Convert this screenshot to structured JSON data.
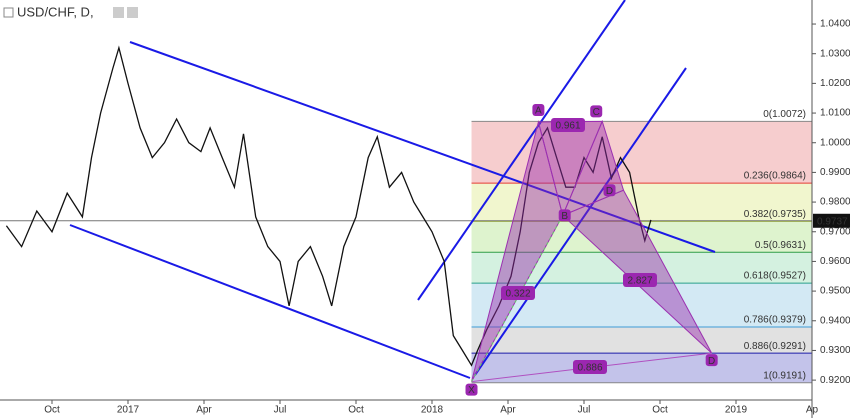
{
  "chart_data": {
    "type": "line",
    "title": "USD/CHF, D,",
    "color": "#111111",
    "x": [
      2016.6,
      2016.65,
      2016.7,
      2016.75,
      2016.8,
      2016.85,
      2016.88,
      2016.91,
      2016.95,
      2016.97,
      2017.0,
      2017.04,
      2017.08,
      2017.12,
      2017.16,
      2017.2,
      2017.24,
      2017.27,
      2017.31,
      2017.35,
      2017.38,
      2017.42,
      2017.46,
      2017.5,
      2017.53,
      2017.56,
      2017.6,
      2017.64,
      2017.67,
      2017.71,
      2017.75,
      2017.79,
      2017.82,
      2017.86,
      2017.9,
      2017.94,
      2017.97,
      2018.0,
      2018.04,
      2018.07,
      2018.1,
      2018.13,
      2018.15,
      2018.18,
      2018.22,
      2018.26,
      2018.29,
      2018.32,
      2018.35,
      2018.38,
      2018.41,
      2018.44,
      2018.47,
      2018.5,
      2018.53,
      2018.56,
      2018.59,
      2018.62,
      2018.65,
      2018.68,
      2018.7,
      2018.72
    ],
    "values": [
      0.972,
      0.965,
      0.977,
      0.97,
      0.983,
      0.975,
      0.995,
      1.01,
      1.025,
      1.032,
      1.02,
      1.005,
      0.995,
      1.0,
      1.008,
      1.0,
      0.997,
      1.005,
      0.995,
      0.985,
      1.003,
      0.975,
      0.965,
      0.96,
      0.945,
      0.96,
      0.965,
      0.955,
      0.945,
      0.965,
      0.975,
      0.995,
      1.002,
      0.985,
      0.99,
      0.98,
      0.975,
      0.97,
      0.96,
      0.935,
      0.93,
      0.925,
      0.93,
      0.937,
      0.945,
      0.955,
      0.97,
      0.99,
      1.0,
      1.005,
      0.995,
      0.985,
      0.985,
      0.995,
      0.99,
      1.002,
      0.988,
      0.995,
      0.99,
      0.975,
      0.967,
      0.974
    ],
    "xlim": [
      2016.579,
      2019.25
    ],
    "ylim": [
      0.9133,
      1.0481
    ],
    "xticks": [
      {
        "value": 2016.75,
        "label": "Oct"
      },
      2017,
      {
        "value": 2017.25,
        "label": "Apr"
      },
      {
        "value": 2017.5,
        "label": "Jul"
      },
      {
        "value": 2017.75,
        "label": "Oct"
      },
      2018,
      {
        "value": 2018.25,
        "label": "Apr"
      },
      {
        "value": 2018.5,
        "label": "Jul"
      },
      {
        "value": 2018.75,
        "label": "Oct"
      },
      2019,
      {
        "value": 2019.25,
        "label": "Ap"
      }
    ],
    "yticks": [
      {
        "value": 0.92,
        "label": "0.9200"
      },
      {
        "value": 0.93,
        "label": "0.9300"
      },
      {
        "value": 0.94,
        "label": "0.9400"
      },
      {
        "value": 0.95,
        "label": "0.9500"
      },
      {
        "value": 0.96,
        "label": "0.9600"
      },
      {
        "value": 0.97,
        "label": "0.9700"
      },
      {
        "value": 0.98,
        "label": "0.9800"
      },
      {
        "value": 0.99,
        "label": "0.9900"
      },
      {
        "value": 1.0,
        "label": "1.0000"
      },
      {
        "value": 1.01,
        "label": "1.0100"
      },
      {
        "value": 1.02,
        "label": "1.0200"
      },
      {
        "value": 1.03,
        "label": "1.0300"
      },
      {
        "value": 1.04,
        "label": "1.0400"
      }
    ],
    "last_price": {
      "value": 0.9737,
      "label": "0.9737"
    },
    "fib_levels": [
      {
        "label": "0(1.0072)",
        "value": 1.0072,
        "color": "#888888",
        "fill": "#f4c4c6"
      },
      {
        "label": "0.236(0.9864)",
        "value": 0.9864,
        "color": "#e53935",
        "fill": "#eef5c6"
      },
      {
        "label": "0.382(0.9735)",
        "value": 0.9735,
        "color": "#a5b83a",
        "fill": "#d8f1c6"
      },
      {
        "label": "0.5(0.9631)",
        "value": 0.9631,
        "color": "#2e9e45",
        "fill": "#cdeedb"
      },
      {
        "label": "0.618(0.9527)",
        "value": 0.9527,
        "color": "#28a08a",
        "fill": "#cbe5f2"
      },
      {
        "label": "0.786(0.9379)",
        "value": 0.9379,
        "color": "#3d9ad6",
        "fill": "#dcdcdc"
      },
      {
        "label": "0.886(0.9291)",
        "value": 0.9291,
        "color": "#1c1ca8",
        "fill": "#b9b9e6"
      },
      {
        "label": "1(0.9191)",
        "value": 0.9191,
        "color": "#888888"
      }
    ],
    "pattern": [
      {
        "label": "X",
        "date": 2018.13,
        "price": 0.9195
      },
      {
        "label": "A",
        "date": 2018.35,
        "price": 1.007
      },
      {
        "label": "B",
        "date": 2018.43,
        "price": 0.9755
      },
      {
        "label": "C",
        "date": 2018.56,
        "price": 1.0072
      },
      {
        "label": "D",
        "date": 2018.63,
        "price": 0.984
      },
      {
        "label": "D",
        "date": 2018.92,
        "price": 0.9291
      }
    ],
    "ratios": [
      "0.961",
      "0.322",
      "2.827",
      "0.886"
    ]
  }
}
